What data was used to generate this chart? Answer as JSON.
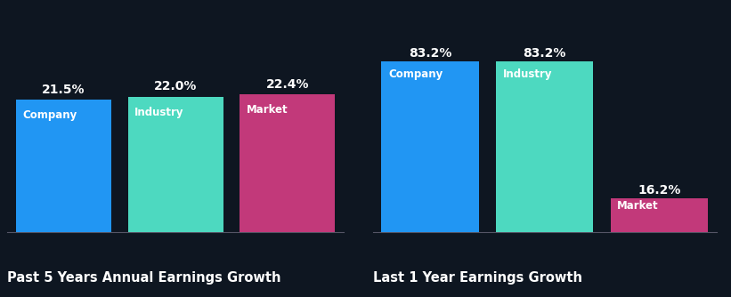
{
  "background_color": "#0e1621",
  "chart1": {
    "title": "Past 5 Years Annual Earnings Growth",
    "categories": [
      "Company",
      "Industry",
      "Market"
    ],
    "values": [
      21.5,
      22.0,
      22.4
    ],
    "colors": [
      "#2196f3",
      "#4dd9c0",
      "#c2397a"
    ],
    "value_labels": [
      "21.5%",
      "22.0%",
      "22.4%"
    ]
  },
  "chart2": {
    "title": "Last 1 Year Earnings Growth",
    "categories": [
      "Company",
      "Industry",
      "Market"
    ],
    "values": [
      83.2,
      83.2,
      16.2
    ],
    "colors": [
      "#2196f3",
      "#4dd9c0",
      "#c2397a"
    ],
    "value_labels": [
      "83.2%",
      "83.2%",
      "16.2%"
    ]
  },
  "text_color": "#ffffff",
  "title_color": "#ffffff",
  "label_fontsize": 8.5,
  "value_fontsize": 10,
  "title_fontsize": 10.5
}
